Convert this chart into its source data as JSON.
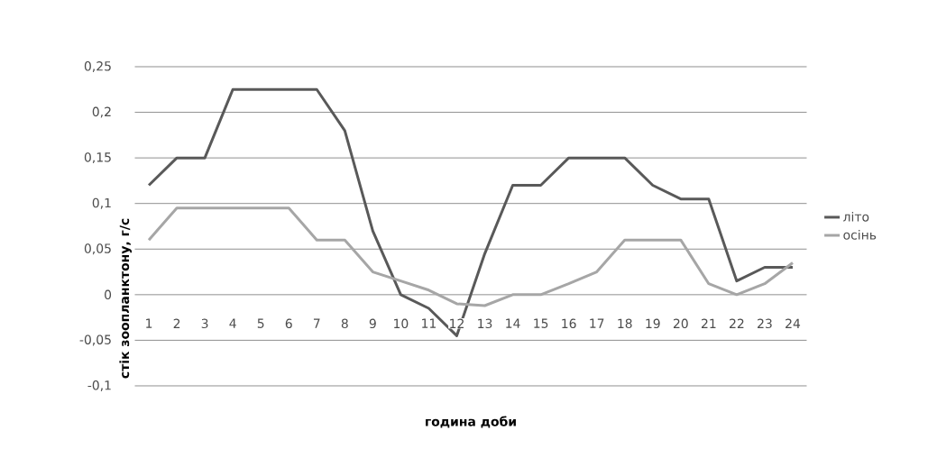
{
  "chart_data": {
    "type": "line",
    "xlabel": "година доби",
    "ylabel": "стік зоопланктону, г/с",
    "categories": [
      "1",
      "2",
      "3",
      "4",
      "5",
      "6",
      "7",
      "8",
      "9",
      "10",
      "11",
      "12",
      "13",
      "14",
      "15",
      "16",
      "17",
      "18",
      "19",
      "20",
      "21",
      "22",
      "23",
      "24"
    ],
    "series": [
      {
        "name": "літо",
        "color": "#595959",
        "values": [
          0.12,
          0.15,
          0.15,
          0.225,
          0.225,
          0.225,
          0.225,
          0.18,
          0.07,
          0.0,
          -0.015,
          -0.045,
          0.045,
          0.12,
          0.12,
          0.15,
          0.15,
          0.15,
          0.12,
          0.105,
          0.105,
          0.015,
          0.03,
          0.03
        ]
      },
      {
        "name": "осінь",
        "color": "#a6a6a6",
        "values": [
          0.06,
          0.095,
          0.095,
          0.095,
          0.095,
          0.095,
          0.06,
          0.06,
          0.025,
          0.015,
          0.005,
          -0.01,
          -0.012,
          0.0,
          0.0,
          0.012,
          0.025,
          0.06,
          0.06,
          0.06,
          0.012,
          0.0,
          0.012,
          0.035
        ]
      }
    ],
    "ylim": [
      -0.1,
      0.25
    ],
    "yticks": [
      {
        "value": -0.1,
        "label": "-0,1"
      },
      {
        "value": -0.05,
        "label": "-0,05"
      },
      0,
      {
        "value": 0.05,
        "label": "0,05"
      },
      {
        "value": 0.1,
        "label": "0,1"
      },
      {
        "value": 0.15,
        "label": "0,15"
      },
      {
        "value": 0.2,
        "label": "0,2"
      },
      {
        "value": 0.25,
        "label": "0,25"
      }
    ],
    "grid": "y",
    "legend": "right",
    "marker": "none",
    "line_style": "solid"
  }
}
